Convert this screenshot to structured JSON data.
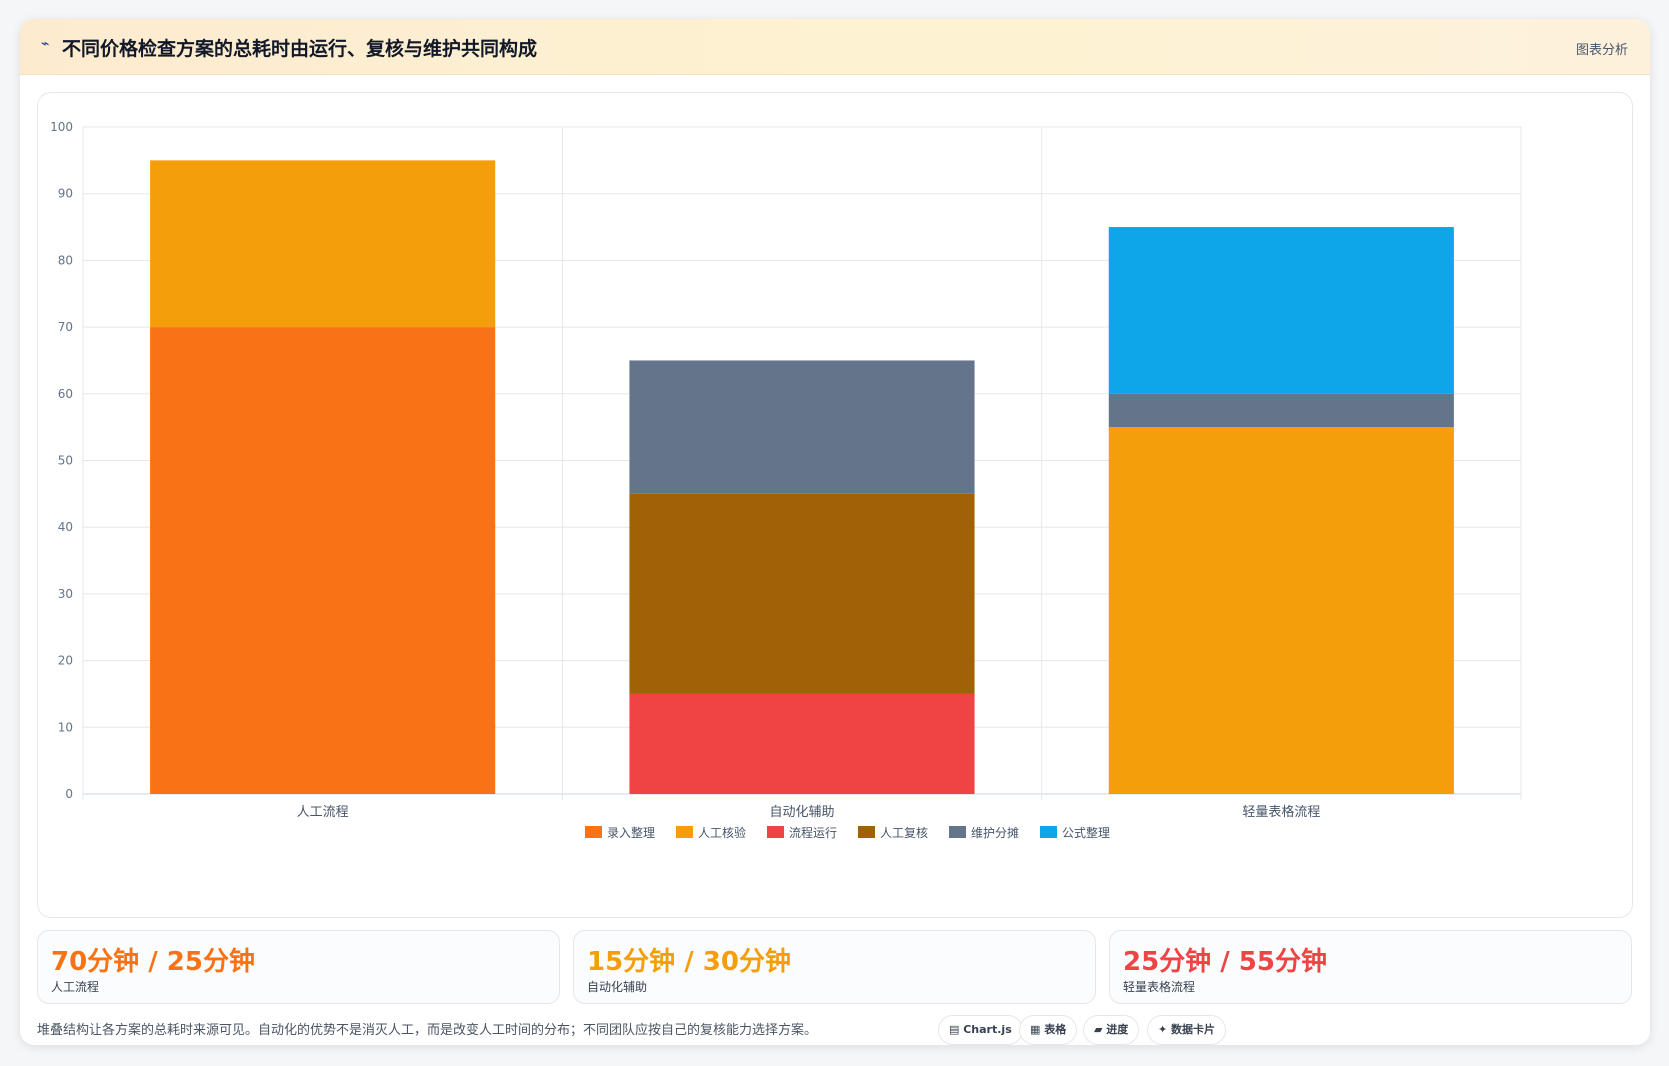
{
  "header": {
    "icon": "chart-line-icon",
    "title": "不同价格检查方案的总耗时由运行、复核与维护共同构成",
    "tag": "图表分析"
  },
  "chart_data": {
    "type": "bar",
    "stacked": true,
    "categories": [
      "人工流程",
      "自动化辅助",
      "轻量表格流程"
    ],
    "ylim": [
      0,
      100
    ],
    "yticks": [
      0,
      10,
      20,
      30,
      40,
      50,
      60,
      70,
      80,
      90,
      100
    ],
    "grid": true,
    "legend_position": "bottom",
    "series": [
      {
        "name": "录入整理",
        "color": "#f97316",
        "values": [
          70,
          0,
          0
        ]
      },
      {
        "name": "人工核验",
        "color": "#f59e0b",
        "values": [
          25,
          0,
          55
        ]
      },
      {
        "name": "流程运行",
        "color": "#ef4444",
        "values": [
          0,
          15,
          0
        ]
      },
      {
        "name": "人工复核",
        "color": "#a16207",
        "values": [
          0,
          30,
          0
        ]
      },
      {
        "name": "维护分摊",
        "color": "#64748b",
        "values": [
          0,
          20,
          5
        ]
      },
      {
        "name": "公式整理",
        "color": "#0ea5e9",
        "values": [
          0,
          0,
          25
        ]
      }
    ]
  },
  "stats": [
    {
      "value": "70分钟 / 25分钟",
      "label": "人工流程",
      "color": "#f97316"
    },
    {
      "value": "15分钟 / 30分钟",
      "label": "自动化辅助",
      "color": "#f59e0b"
    },
    {
      "value": "25分钟 / 55分钟",
      "label": "轻量表格流程",
      "color": "#ef4444"
    }
  ],
  "footer": {
    "note": "堆叠结构让各方案的总耗时来源可见。自动化的优势不是消灭人工，而是改变人工时间的分布；不同团队应按自己的复核能力选择方案。",
    "chips": [
      {
        "icon": "chart-icon",
        "label": "Chart.js"
      },
      {
        "icon": "table-icon",
        "label": "表格"
      },
      {
        "icon": "progress-icon",
        "label": "进度"
      },
      {
        "icon": "sparkle-icon",
        "label": "数据卡片"
      }
    ]
  }
}
